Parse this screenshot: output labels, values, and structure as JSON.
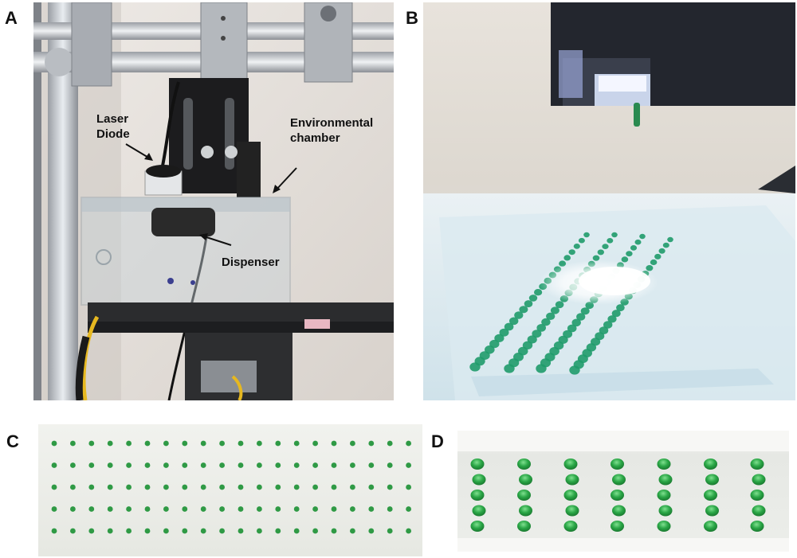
{
  "figure": {
    "panel_labels": {
      "a": "A",
      "b": "B",
      "c": "C",
      "d": "D"
    },
    "panel_a": {
      "annotations": {
        "laser_line1": "Laser",
        "laser_line2": "Diode",
        "env_line1": "Environmental",
        "env_line2": "chamber",
        "dispenser": "Dispenser"
      }
    },
    "panel_c": {
      "rows": 5,
      "cols": 20,
      "dot_color": "#2f9a45"
    },
    "panel_d": {
      "cols": 7,
      "rows": 5,
      "dot_color": "#2aa646"
    },
    "panel_b": {
      "droplet_color": "#1f9b6a"
    }
  }
}
